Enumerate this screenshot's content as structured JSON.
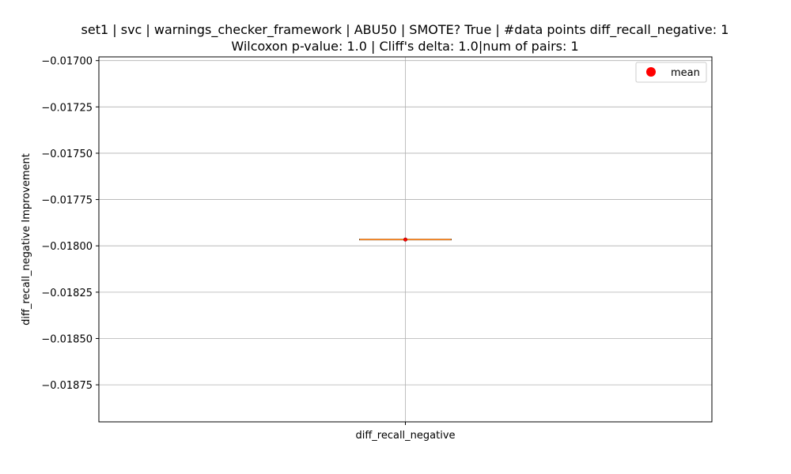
{
  "chart_data": {
    "type": "box",
    "title_line1": "set1 | svc | warnings_checker_framework | ABU50 | SMOTE? True | #data points diff_recall_negative: 1",
    "title_line2": "Wilcoxon p-value: 1.0 | Cliff's delta: 1.0|num of pairs: 1",
    "xlabel": "",
    "ylabel": "diff_recall_negative Improvement",
    "categories": [
      "diff_recall_negative"
    ],
    "ylim": [
      -0.01895,
      -0.01698
    ],
    "yticks": [
      -0.017,
      -0.01725,
      -0.0175,
      -0.01775,
      -0.018,
      -0.01825,
      -0.0185,
      -0.01875
    ],
    "ytick_labels": [
      "−0.01700",
      "−0.01725",
      "−0.01750",
      "−0.01775",
      "−0.01800",
      "−0.01825",
      "−0.01850",
      "−0.01875"
    ],
    "boxes": [
      {
        "category": "diff_recall_negative",
        "min": -0.017966,
        "q1": -0.017966,
        "median": -0.017966,
        "q3": -0.017966,
        "max": -0.017966,
        "mean": -0.017966
      }
    ],
    "grid": true,
    "legend": {
      "position": "top-right",
      "entries": [
        {
          "label": "mean",
          "color": "#ff0000",
          "marker": "circle"
        }
      ]
    },
    "colors": {
      "median": "#ff7f0e",
      "mean": "#ff0000",
      "box": "#000000",
      "grid": "#b0b0b0"
    }
  }
}
